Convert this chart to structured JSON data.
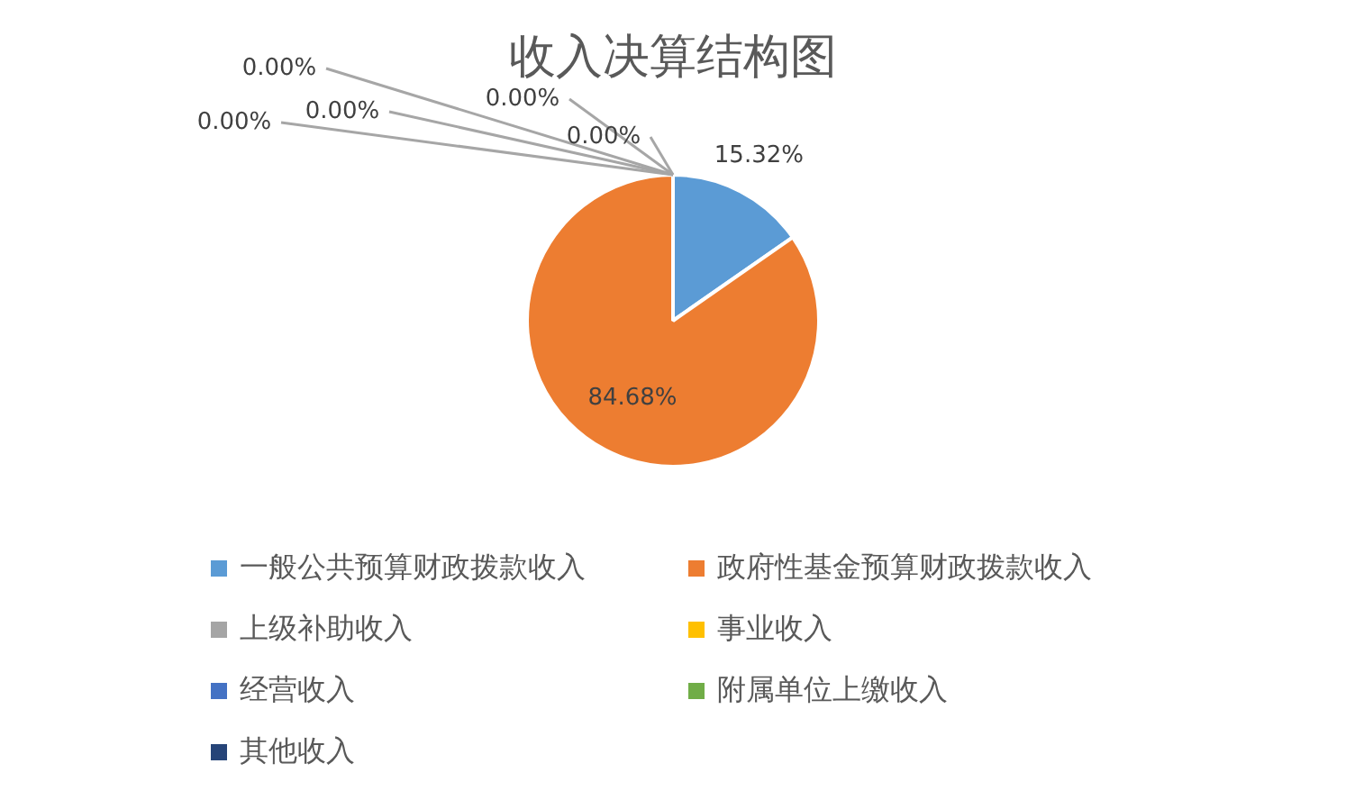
{
  "chart_data": {
    "type": "pie",
    "title": "收入决算结构图",
    "categories": [
      "一般公共预算财政拨款收入",
      "政府性基金预算财政拨款收入",
      "上级补助收入",
      "事业收入",
      "经营收入",
      "附属单位上缴收入",
      "其他收入"
    ],
    "values": [
      15.32,
      84.68,
      0,
      0,
      0,
      0,
      0
    ],
    "colors": [
      "#5b9bd5",
      "#ed7d31",
      "#a5a5a5",
      "#ffc000",
      "#4472c4",
      "#70ad47",
      "#264478"
    ],
    "value_labels": [
      "15.32%",
      "84.68%",
      "0.00%",
      "0.00%",
      "0.00%",
      "0.00%",
      "0.00%"
    ],
    "legend": "bottom"
  }
}
